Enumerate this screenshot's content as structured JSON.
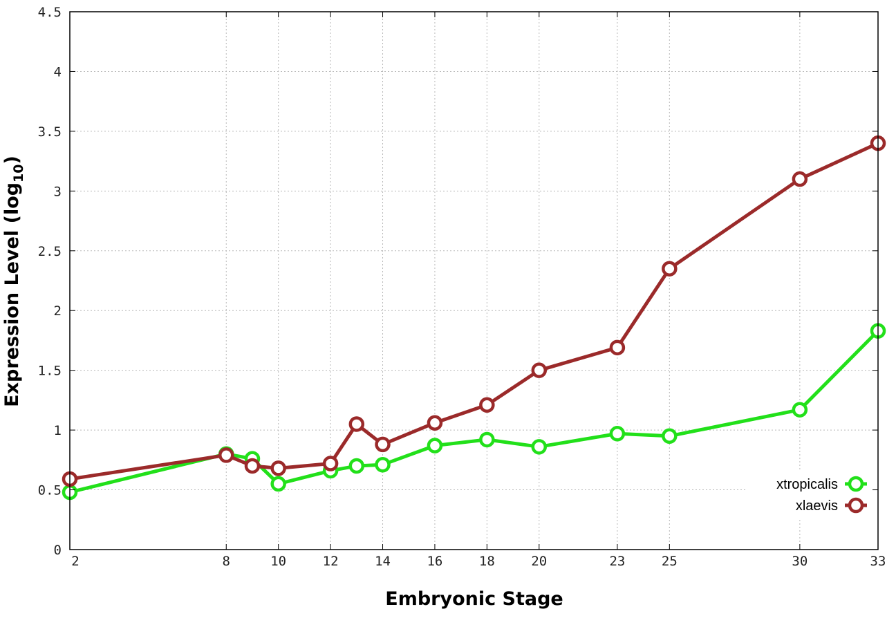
{
  "chart_data": {
    "type": "line",
    "xlabel": "Embryonic Stage",
    "ylabel_main": "Expression Level (log",
    "ylabel_sub": "10",
    "ylabel_close": ")",
    "xlim": [
      2,
      33
    ],
    "ylim": [
      0,
      4.5
    ],
    "x_ticks": [
      2,
      8,
      10,
      12,
      14,
      16,
      18,
      20,
      23,
      25,
      30,
      33
    ],
    "x_tick_labels": [
      "2",
      "8",
      "10",
      "12",
      "14",
      "16",
      "18",
      "20",
      "23",
      "25",
      "30",
      "33"
    ],
    "y_ticks": [
      0,
      0.5,
      1,
      1.5,
      2,
      2.5,
      3,
      3.5,
      4,
      4.5
    ],
    "y_tick_labels": [
      "0",
      "0.5",
      "1",
      "1.5",
      "2",
      "2.5",
      "3",
      "3.5",
      "4",
      "4.5"
    ],
    "grid": true,
    "legend_position": "bottom-right",
    "series": [
      {
        "name": "xtropicalis",
        "color": "#22e01a",
        "points": [
          [
            2,
            0.48
          ],
          [
            8,
            0.8
          ],
          [
            9,
            0.76
          ],
          [
            10,
            0.55
          ],
          [
            12,
            0.66
          ],
          [
            13,
            0.7
          ],
          [
            14,
            0.71
          ],
          [
            16,
            0.87
          ],
          [
            18,
            0.92
          ],
          [
            20,
            0.86
          ],
          [
            23,
            0.97
          ],
          [
            25,
            0.95
          ],
          [
            30,
            1.17
          ],
          [
            33,
            1.83
          ]
        ]
      },
      {
        "name": "xlaevis",
        "color": "#9b2a2a",
        "points": [
          [
            2,
            0.59
          ],
          [
            8,
            0.79
          ],
          [
            9,
            0.7
          ],
          [
            10,
            0.68
          ],
          [
            12,
            0.72
          ],
          [
            13,
            1.05
          ],
          [
            14,
            0.88
          ],
          [
            16,
            1.06
          ],
          [
            18,
            1.21
          ],
          [
            20,
            1.5
          ],
          [
            23,
            1.69
          ],
          [
            25,
            2.35
          ],
          [
            30,
            3.1
          ],
          [
            33,
            3.4
          ]
        ]
      }
    ]
  }
}
